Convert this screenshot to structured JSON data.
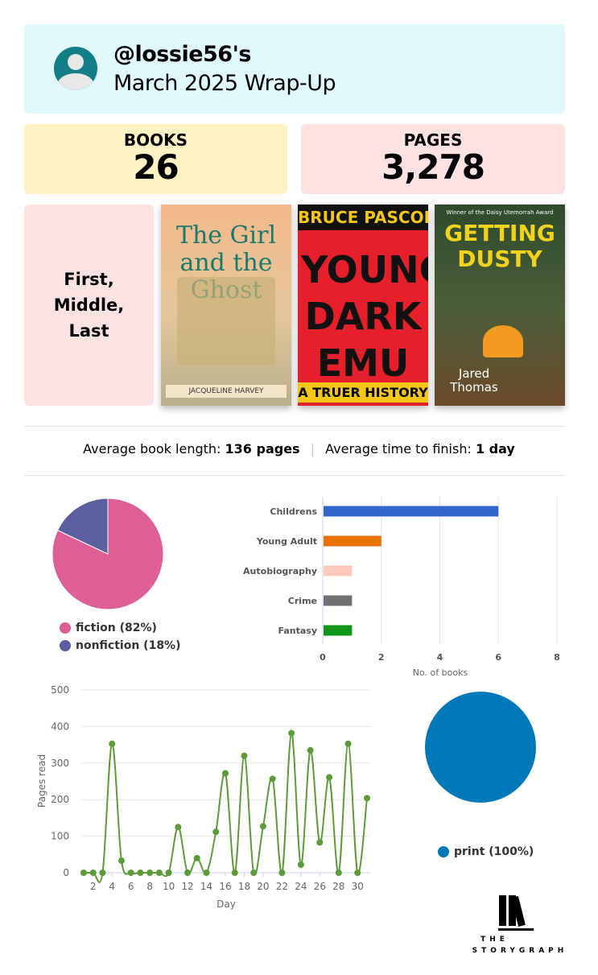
{
  "header": {
    "username": "@lossie56's",
    "title": "March 2025 Wrap-Up",
    "avatar_icon": "user-avatar-icon"
  },
  "stats": {
    "books_label": "BOOKS",
    "books_value": "26",
    "pages_label": "PAGES",
    "pages_value": "3,278"
  },
  "first_middle_last": {
    "label": "First, Middle, Last",
    "covers": [
      {
        "title": "The Girl and the Ghost",
        "author": "JACQUELINE HARVEY",
        "color": "#e9b47b"
      },
      {
        "title": "YOUNG DARK EMU",
        "author": "BRUCE PASCOE",
        "subtitle": "A TRUER HISTORY",
        "color": "#e5202a"
      },
      {
        "title": "GETTING DUSTY",
        "author": "Jared Thomas",
        "award": "Winner of the Daisy Utemorrah Award",
        "color": "#3a5a2a"
      }
    ]
  },
  "averages": {
    "length_label": "Average book length:",
    "length_value": "136 pages",
    "time_label": "Average time to finish:",
    "time_value": "1 day"
  },
  "chart_data": [
    {
      "type": "pie",
      "slices": [
        {
          "label": "fiction (82%)",
          "value": 82,
          "color": "#de5f95"
        },
        {
          "label": "nonfiction (18%)",
          "value": 18,
          "color": "#5a5f9f"
        }
      ],
      "legend": "bottom"
    },
    {
      "type": "bar",
      "orientation": "horizontal",
      "categories": [
        "Childrens",
        "Young Adult",
        "Autobiography",
        "Crime",
        "Fantasy"
      ],
      "values": [
        6,
        2,
        1,
        1,
        1
      ],
      "colors": [
        "#3366cc",
        "#e67300",
        "#ffcabc",
        "#707070",
        "#109618"
      ],
      "xlabel": "No. of books",
      "xlim": [
        0,
        8
      ],
      "xticks": [
        "0",
        "2",
        "4",
        "6",
        "8"
      ],
      "grid": true
    },
    {
      "type": "line",
      "x": [
        1,
        2,
        3,
        4,
        5,
        6,
        7,
        8,
        9,
        10,
        11,
        12,
        13,
        14,
        15,
        16,
        17,
        18,
        19,
        20,
        21,
        22,
        23,
        24,
        25,
        26,
        27,
        28,
        29,
        30,
        31
      ],
      "values": [
        0,
        0,
        0,
        353,
        33,
        0,
        0,
        0,
        0,
        0,
        125,
        0,
        40,
        0,
        112,
        272,
        0,
        320,
        0,
        127,
        257,
        0,
        382,
        22,
        335,
        83,
        261,
        0,
        353,
        0,
        204
      ],
      "xlabel": "Day",
      "ylabel": "Pages read",
      "ylim": [
        0,
        500
      ],
      "yticks": [
        "0",
        "100",
        "200",
        "300",
        "400",
        "500"
      ],
      "xticks": [
        "2",
        "4",
        "6",
        "8",
        "10",
        "12",
        "14",
        "16",
        "18",
        "20",
        "22",
        "24",
        "26",
        "28",
        "30"
      ],
      "color": "#5c9a3a",
      "grid": true
    },
    {
      "type": "pie",
      "slices": [
        {
          "label": "print (100%)",
          "value": 100,
          "color": "#0079b8"
        }
      ],
      "legend": "bottom"
    }
  ],
  "logo": {
    "line1": "THE",
    "line2": "STORYGRAPH"
  }
}
